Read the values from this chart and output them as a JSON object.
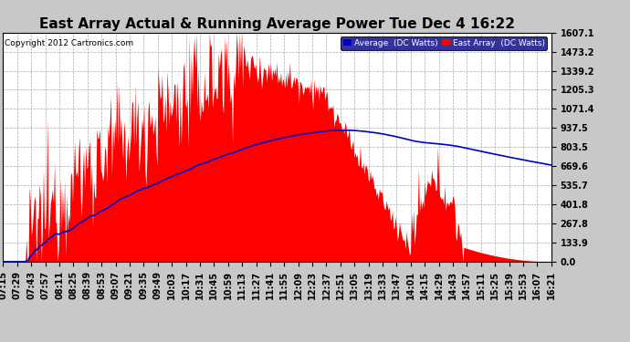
{
  "title": "East Array Actual & Running Average Power Tue Dec 4 16:22",
  "copyright": "Copyright 2012 Cartronics.com",
  "legend_avg": "Average  (DC Watts)",
  "legend_east": "East Array  (DC Watts)",
  "yticks": [
    0.0,
    133.9,
    267.8,
    401.8,
    535.7,
    669.6,
    803.5,
    937.5,
    1071.4,
    1205.3,
    1339.2,
    1473.2,
    1607.1
  ],
  "ymax": 1607.1,
  "bg_color": "#c8c8c8",
  "plot_bg_color": "#ffffff",
  "bar_color": "#ff0000",
  "avg_line_color": "#0000cc",
  "grid_color": "#aaaaaa",
  "title_fontsize": 11,
  "tick_fontsize": 7,
  "xtick_labels": [
    "07:15",
    "07:29",
    "07:43",
    "07:57",
    "08:11",
    "08:25",
    "08:39",
    "08:53",
    "09:07",
    "09:21",
    "09:35",
    "09:49",
    "10:03",
    "10:17",
    "10:31",
    "10:45",
    "10:59",
    "11:13",
    "11:27",
    "11:41",
    "11:55",
    "12:09",
    "12:23",
    "12:37",
    "12:51",
    "13:05",
    "13:19",
    "13:33",
    "13:47",
    "14:01",
    "14:15",
    "14:29",
    "14:43",
    "14:57",
    "15:11",
    "15:25",
    "15:39",
    "15:53",
    "16:07",
    "16:21"
  ]
}
